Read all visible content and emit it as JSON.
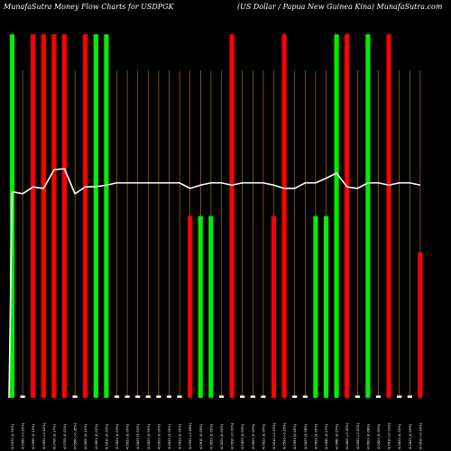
{
  "header": {
    "left_title": "MunafaSutra Money Flow Charts for USDPGK",
    "right_title": "(US Dollar / Papua New Guinea Kina) MunafaSutra.com"
  },
  "colors": {
    "background": "#000000",
    "up": "#00ee00",
    "down": "#ff0000",
    "flat": "#ffffff",
    "grid": "#b8860b",
    "line": "#ffffff"
  },
  "chart_data": {
    "type": "bar",
    "title": "MunafaSutra Money Flow Charts for USDPGK",
    "subtitle": "(US Dollar / Papua New Guinea Kina) MunafaSutra.com",
    "grid": true,
    "categories": [
      "4.0572 (0.00%)",
      "4.0560 (-0.03%)",
      "4.0599 (0.10%)",
      "4.0591 (-0.02%)",
      "4.0700 (0.27%)",
      "4.0705 (0.01%)",
      "4.0560 (-0.36%)",
      "4.0600 (0.10%)",
      "4.0601 (0.00%)",
      "4.0610 (0.02%)",
      "4.0623 (0.03%)",
      "4.0623 (0.00%)",
      "4.0623 (0.00%)",
      "4.0623 (0.00%)",
      "4.0623 (0.00%)",
      "4.0623 (0.00%)",
      "4.0623 (0.00%)",
      "4.0591 (-0.08%)",
      "4.0610 (0.05%)",
      "4.0623 (0.03%)",
      "4.0623 (0.00%)",
      "4.0610 (-0.03%)",
      "4.0623 (0.03%)",
      "4.0623 (0.00%)",
      "4.0623 (0.00%)",
      "4.0610 (-0.03%)",
      "4.0591 (-0.05%)",
      "4.0591 (0.00%)",
      "4.0623 (0.08%)",
      "4.0623 (0.00%)",
      "4.0650 (0.07%)",
      "4.0680 (0.07%)",
      "4.0600 (-0.20%)",
      "4.0591 (-0.02%)",
      "4.0623 (0.08%)",
      "4.0623 (0.00%)",
      "4.0610 (-0.03%)",
      "4.0623 (0.03%)",
      "4.0623 (0.00%)",
      "4.0610 (-0.03%)"
    ],
    "bars": [
      {
        "dir": "up",
        "value": 100
      },
      {
        "dir": "flat",
        "value": 1
      },
      {
        "dir": "down",
        "value": 100
      },
      {
        "dir": "down",
        "value": 100
      },
      {
        "dir": "down",
        "value": 100
      },
      {
        "dir": "down",
        "value": 100
      },
      {
        "dir": "flat",
        "value": 1
      },
      {
        "dir": "down",
        "value": 100
      },
      {
        "dir": "up",
        "value": 100
      },
      {
        "dir": "up",
        "value": 100
      },
      {
        "dir": "flat",
        "value": 1
      },
      {
        "dir": "flat",
        "value": 1
      },
      {
        "dir": "flat",
        "value": 1
      },
      {
        "dir": "flat",
        "value": 1
      },
      {
        "dir": "flat",
        "value": 1
      },
      {
        "dir": "flat",
        "value": 1
      },
      {
        "dir": "flat",
        "value": 1
      },
      {
        "dir": "down",
        "value": 50
      },
      {
        "dir": "up",
        "value": 50
      },
      {
        "dir": "up",
        "value": 50
      },
      {
        "dir": "flat",
        "value": 1
      },
      {
        "dir": "down",
        "value": 100
      },
      {
        "dir": "flat",
        "value": 1
      },
      {
        "dir": "flat",
        "value": 1
      },
      {
        "dir": "flat",
        "value": 1
      },
      {
        "dir": "down",
        "value": 50
      },
      {
        "dir": "down",
        "value": 100
      },
      {
        "dir": "flat",
        "value": 1
      },
      {
        "dir": "flat",
        "value": 1
      },
      {
        "dir": "up",
        "value": 50
      },
      {
        "dir": "up",
        "value": 50
      },
      {
        "dir": "up",
        "value": 100
      },
      {
        "dir": "down",
        "value": 100
      },
      {
        "dir": "flat",
        "value": 1
      },
      {
        "dir": "up",
        "value": 100
      },
      {
        "dir": "flat",
        "value": 1
      },
      {
        "dir": "down",
        "value": 100
      },
      {
        "dir": "flat",
        "value": 1
      },
      {
        "dir": "flat",
        "value": 1
      },
      {
        "dir": "down",
        "value": 40
      }
    ],
    "price_line": [
      4.0572,
      4.056,
      4.0599,
      4.0591,
      4.07,
      4.0705,
      4.056,
      4.06,
      4.0601,
      4.061,
      4.0623,
      4.0623,
      4.0623,
      4.0623,
      4.0623,
      4.0623,
      4.0623,
      4.0591,
      4.061,
      4.0623,
      4.0623,
      4.061,
      4.0623,
      4.0623,
      4.0623,
      4.061,
      4.0591,
      4.0591,
      4.0623,
      4.0623,
      4.065,
      4.068,
      4.06,
      4.0591,
      4.0623,
      4.0623,
      4.061,
      4.0623,
      4.0623,
      4.061
    ],
    "ylim": [
      0,
      100
    ]
  }
}
